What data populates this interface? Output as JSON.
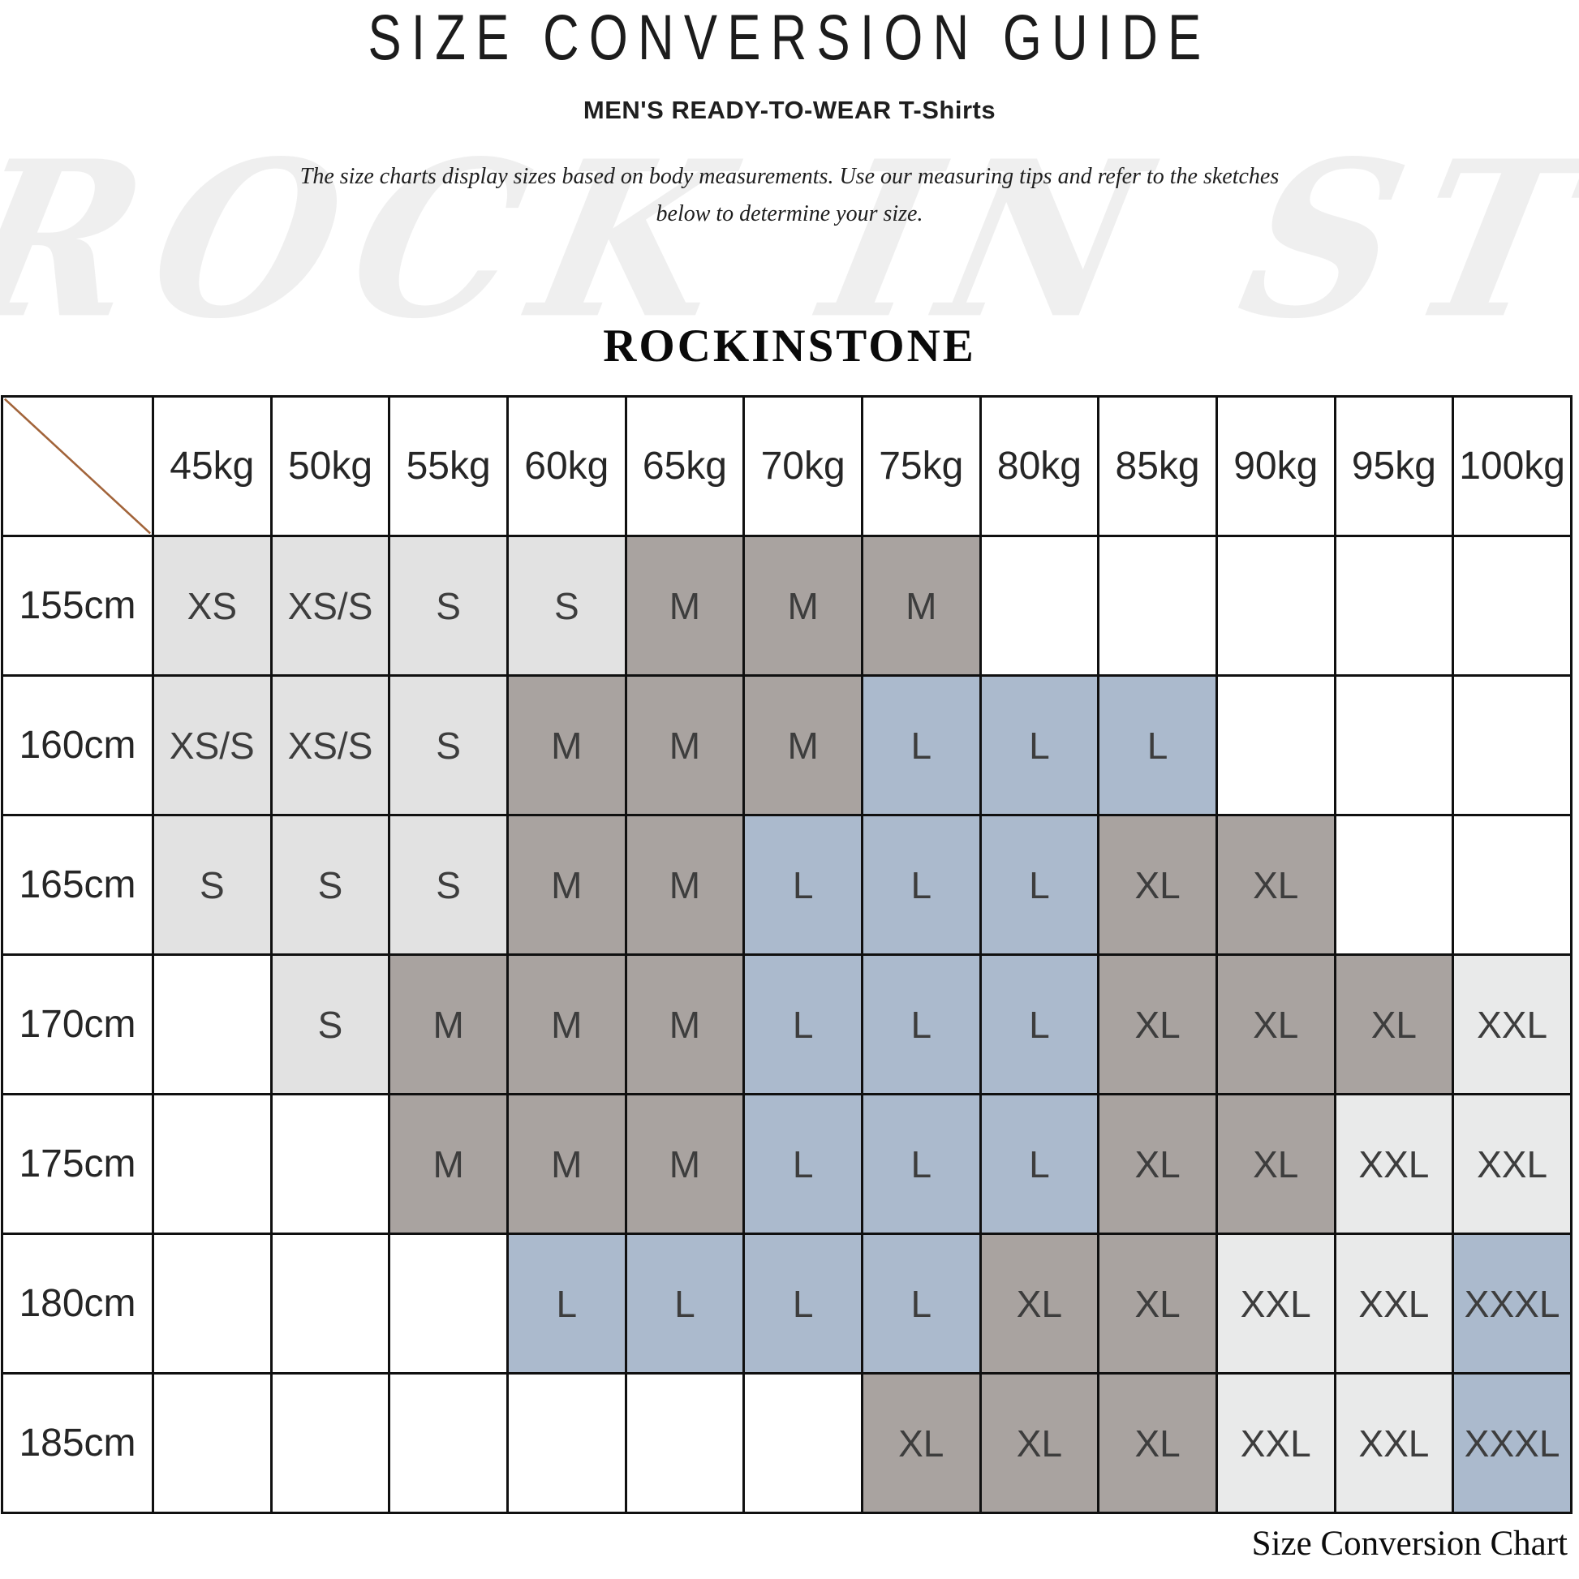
{
  "header": {
    "title": "SIZE CONVERSION GUIDE",
    "subtitle": "MEN'S READY-TO-WEAR T-Shirts",
    "intro_line1": "The size charts display sizes based on body measurements.  Use our measuring tips and refer to the sketches",
    "intro_line2": "below to determine your size.",
    "brand": "ROCKINSTONE",
    "watermark": "ROCK IN STONE"
  },
  "caption": "Size Conversion Chart",
  "colors": {
    "light": "#e2e2e2",
    "gray": "#a9a3a0",
    "blue": "#abbacd",
    "xlight": "#e9eaea",
    "empty": "#ffffff",
    "diagonal": "#a2643a",
    "border": "#101010"
  },
  "chart_data": {
    "type": "table",
    "title": "SIZE CONVERSION GUIDE",
    "subtitle": "MEN'S READY-TO-WEAR T-Shirts",
    "weight_columns": [
      "45kg",
      "50kg",
      "55kg",
      "60kg",
      "65kg",
      "70kg",
      "75kg",
      "80kg",
      "85kg",
      "90kg",
      "95kg",
      "100kg"
    ],
    "height_rows": [
      "155cm",
      "160cm",
      "165cm",
      "170cm",
      "175cm",
      "180cm",
      "185cm"
    ],
    "matrix": [
      [
        "XS",
        "XS/S",
        "S",
        "S",
        "M",
        "M",
        "M",
        "",
        "",
        "",
        "",
        ""
      ],
      [
        "XS/S",
        "XS/S",
        "S",
        "M",
        "M",
        "M",
        "L",
        "L",
        "L",
        "",
        "",
        ""
      ],
      [
        "S",
        "S",
        "S",
        "M",
        "M",
        "L",
        "L",
        "L",
        "XL",
        "XL",
        "",
        ""
      ],
      [
        "",
        "S",
        "M",
        "M",
        "M",
        "L",
        "L",
        "L",
        "XL",
        "XL",
        "XL",
        "XXL"
      ],
      [
        "",
        "",
        "M",
        "M",
        "M",
        "L",
        "L",
        "L",
        "XL",
        "XL",
        "XXL",
        "XXL"
      ],
      [
        "",
        "",
        "",
        "L",
        "L",
        "L",
        "L",
        "XL",
        "XL",
        "XXL",
        "XXL",
        "XXXL"
      ],
      [
        "",
        "",
        "",
        "",
        "",
        "",
        "XL",
        "XL",
        "XL",
        "XXL",
        "XXL",
        "XXXL"
      ]
    ],
    "size_color_map": {
      "XS": "light",
      "XS/S": "light",
      "S": "light",
      "M": "gray",
      "L": "blue",
      "XL": "gray",
      "XXL": "xlight",
      "XXXL": "blue",
      "": "empty"
    }
  }
}
